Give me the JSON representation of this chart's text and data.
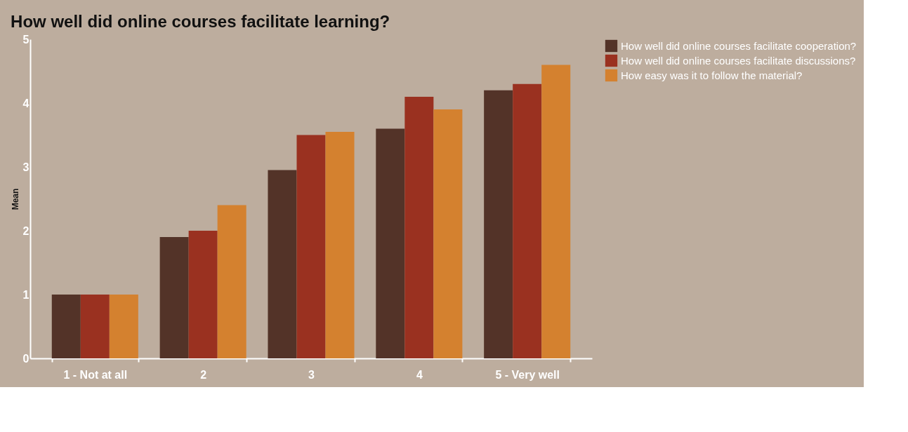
{
  "chart_data": {
    "type": "bar",
    "title": "How well did online courses facilitate learning?",
    "ylabel": "Mean",
    "categories": [
      "1 - Not at all",
      "2",
      "3",
      "4",
      "5 - Very well"
    ],
    "series": [
      {
        "name": "How well did online courses facilitate cooperation?",
        "color": "#533328",
        "values": [
          1.0,
          1.9,
          2.95,
          3.6,
          4.2
        ]
      },
      {
        "name": "How well did online courses facilitate discussions?",
        "color": "#9a3120",
        "values": [
          1.0,
          2.0,
          3.5,
          4.1,
          4.3
        ]
      },
      {
        "name": "How easy was it to follow the material?",
        "color": "#d4812f",
        "values": [
          1.0,
          2.4,
          3.55,
          3.9,
          4.6
        ]
      }
    ],
    "ylim": [
      0,
      5
    ],
    "yticks": [
      0,
      1,
      2,
      3,
      4,
      5
    ],
    "grid": false,
    "legend": "right"
  }
}
